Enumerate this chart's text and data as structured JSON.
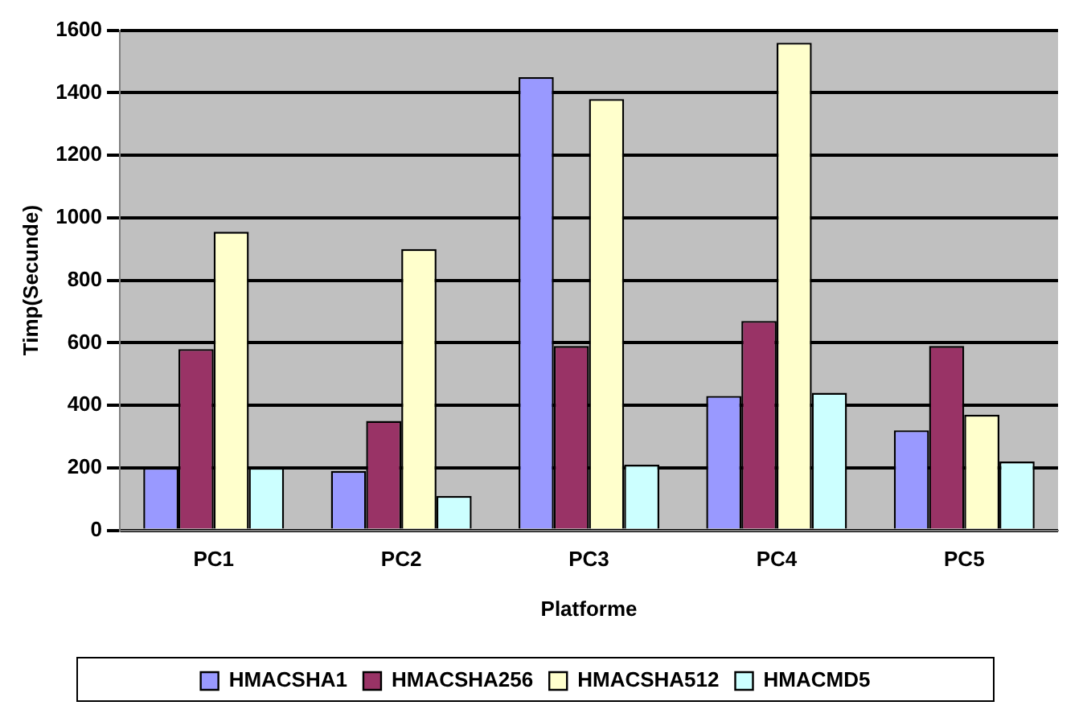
{
  "chart_data": {
    "type": "bar",
    "xlabel": "Platforme",
    "ylabel": "Timp(Secunde)",
    "categories": [
      "PC1",
      "PC2",
      "PC3",
      "PC4",
      "PC5"
    ],
    "series": [
      {
        "name": "HMACSHA1",
        "color": "#9999ff",
        "values": [
          200,
          190,
          1450,
          430,
          320
        ]
      },
      {
        "name": "HMACSHA256",
        "color": "#993366",
        "values": [
          580,
          350,
          590,
          670,
          590
        ]
      },
      {
        "name": "HMACSHA512",
        "color": "#ffffcc",
        "values": [
          955,
          900,
          1380,
          1560,
          370
        ]
      },
      {
        "name": "HMACMD5",
        "color": "#ccffff",
        "values": [
          200,
          110,
          210,
          440,
          220
        ]
      }
    ],
    "ylim": [
      0,
      1600
    ],
    "yticks": [
      0,
      200,
      400,
      600,
      800,
      1000,
      1200,
      1400,
      1600
    ],
    "grid": "y",
    "legend": "bottom"
  }
}
